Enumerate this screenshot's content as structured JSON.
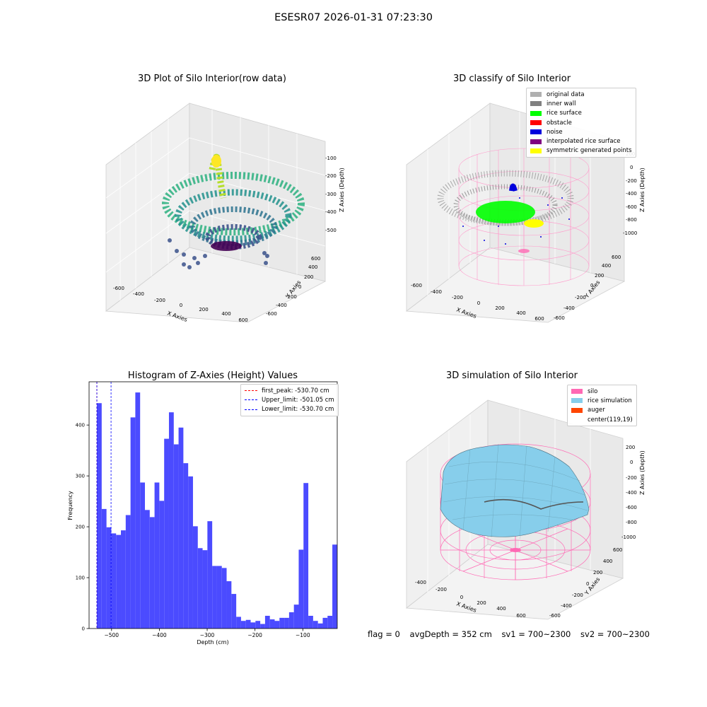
{
  "suptitle": "ESESR07 2026-01-31 07:23:30",
  "panels": {
    "raw": {
      "title": "3D Plot of Silo Interior(row data)",
      "xlabel": "X Axies",
      "ylabel": "Y Axies",
      "zlabel": "Z Axies (Depth)",
      "xticks": [
        "-600",
        "-400",
        "-200",
        "0",
        "200",
        "400",
        "600"
      ],
      "yticks": [
        "-600",
        "-400",
        "-200",
        "0",
        "200",
        "400",
        "600"
      ],
      "zticks": [
        "-100",
        "-200",
        "-300",
        "-400",
        "-500"
      ]
    },
    "classify": {
      "title": "3D classify of Silo Interior",
      "xlabel": "X Axies",
      "ylabel": "Y Axies",
      "zlabel": "Z Axies (Depth)",
      "xticks": [
        "-600",
        "-400",
        "-200",
        "0",
        "200",
        "400",
        "600"
      ],
      "yticks": [
        "-600",
        "-400",
        "-200",
        "0",
        "200",
        "400",
        "600"
      ],
      "zticks": [
        "200",
        "0",
        "-200",
        "-400",
        "-600",
        "-800",
        "-1000"
      ],
      "legend": [
        {
          "label": "original data",
          "color": "#b0b0b0"
        },
        {
          "label": "inner wall",
          "color": "#808080"
        },
        {
          "label": "rice surface",
          "color": "#00ff00"
        },
        {
          "label": "obstacle",
          "color": "#ff0000"
        },
        {
          "label": "noise",
          "color": "#0000dd"
        },
        {
          "label": "interpolated rice surface",
          "color": "#800080"
        },
        {
          "label": "symmetric generated points",
          "color": "#ffff00"
        }
      ]
    },
    "simulation": {
      "title": "3D simulation of Silo Interior",
      "xlabel": "X Axies",
      "ylabel": "Y Axies",
      "zlabel": "Z Axies (Depth)",
      "xticks": [
        "-400",
        "-200",
        "0",
        "200",
        "400",
        "600"
      ],
      "yticks": [
        "-600",
        "-400",
        "-200",
        "0",
        "200",
        "400",
        "600"
      ],
      "zticks": [
        "200",
        "0",
        "-200",
        "-400",
        "-600",
        "-800",
        "-1000"
      ],
      "legend": [
        {
          "label": "silo",
          "color": "#ff69b4"
        },
        {
          "label": "rice simulation",
          "color": "#87ceeb"
        },
        {
          "label": "auger",
          "color": "#ff4500"
        },
        {
          "label": "center(119,19)",
          "color": "#ffffff"
        }
      ]
    }
  },
  "chart_data": {
    "type": "bar",
    "title": "Histogram of Z-Axies (Height) Values",
    "xlabel": "Depth (cm)",
    "ylabel": "Frequency",
    "xlim": [
      -547,
      -28
    ],
    "ylim": [
      0,
      485
    ],
    "xticks": [
      -500,
      -400,
      -300,
      -200,
      -100
    ],
    "yticks": [
      0,
      100,
      200,
      300,
      400
    ],
    "bin_start": -530.7,
    "bin_width": 10.05,
    "values": [
      443,
      235,
      199,
      187,
      184,
      193,
      223,
      415,
      464,
      287,
      233,
      219,
      287,
      251,
      373,
      425,
      362,
      395,
      325,
      299,
      201,
      158,
      154,
      211,
      123,
      123,
      119,
      93,
      68,
      23,
      15,
      17,
      12,
      15,
      9,
      25,
      18,
      15,
      21,
      21,
      32,
      47,
      155,
      286,
      25,
      15,
      10,
      21,
      25,
      165
    ],
    "bar_color": "#4b4bff",
    "grid": false,
    "legend_position": "upper right",
    "lines": [
      {
        "label": "first_peak: -530.70 cm",
        "x": -530.7,
        "color": "#ff0000"
      },
      {
        "label": "Upper_limit: -501.05 cm",
        "x": -501.05,
        "color": "#0000ff"
      },
      {
        "label": "Lower_limit: -530.70 cm",
        "x": -530.7,
        "color": "#0000ff"
      }
    ]
  },
  "status": {
    "flag": "flag = 0",
    "avg_depth": "avgDepth = 352 cm",
    "sv1": "sv1 = 700~2300",
    "sv2": "sv2 = 700~2300"
  }
}
